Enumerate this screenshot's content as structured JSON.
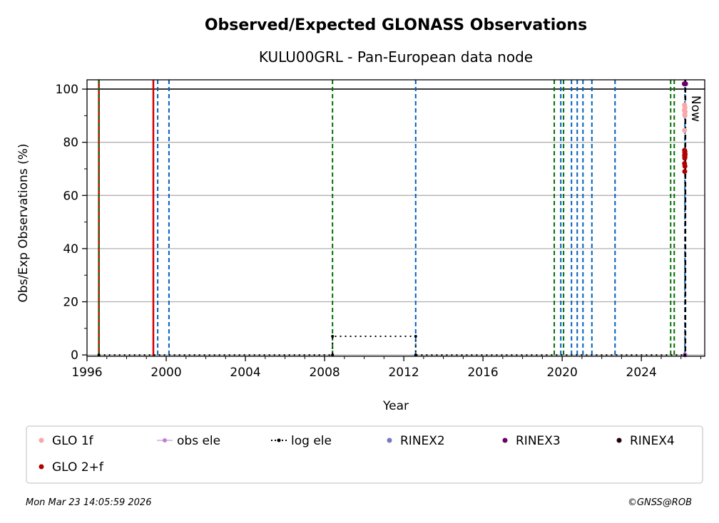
{
  "chart_data": {
    "type": "scatter",
    "title": "Observed/Expected GLONASS Observations",
    "subtitle": "KULU00GRL - Pan-European data node",
    "xlabel": "Year",
    "ylabel": "Obs/Exp Observations (%)",
    "xlim": [
      1996,
      2027.2
    ],
    "ylim": [
      -0.5,
      103.5
    ],
    "xticks": [
      1996,
      2000,
      2004,
      2008,
      2012,
      2016,
      2020,
      2024
    ],
    "yticks": [
      0,
      20,
      40,
      60,
      80,
      100
    ],
    "grid": "horizontal",
    "reference_line": 100,
    "now_label": "Now",
    "now_x": 2026.22,
    "vlines": [
      {
        "x": 1996.6,
        "color": "#d00000",
        "style": "solid"
      },
      {
        "x": 1996.6,
        "color": "#007000",
        "style": "dashed"
      },
      {
        "x": 1999.35,
        "color": "#d00000",
        "style": "solid"
      },
      {
        "x": 1999.57,
        "color": "#0060c0",
        "style": "dashed"
      },
      {
        "x": 2000.14,
        "color": "#0060c0",
        "style": "dashed"
      },
      {
        "x": 2008.4,
        "color": "#007000",
        "style": "dashed"
      },
      {
        "x": 2012.6,
        "color": "#0060c0",
        "style": "dashed"
      },
      {
        "x": 2019.6,
        "color": "#007000",
        "style": "dashed"
      },
      {
        "x": 2019.93,
        "color": "#0060c0",
        "style": "dashed"
      },
      {
        "x": 2020.07,
        "color": "#007000",
        "style": "dashed"
      },
      {
        "x": 2020.47,
        "color": "#0060c0",
        "style": "dashed"
      },
      {
        "x": 2020.76,
        "color": "#0060c0",
        "style": "dashed"
      },
      {
        "x": 2021.05,
        "color": "#0060c0",
        "style": "dashed"
      },
      {
        "x": 2021.5,
        "color": "#0060c0",
        "style": "dashed"
      },
      {
        "x": 2022.67,
        "color": "#0060c0",
        "style": "dashed"
      },
      {
        "x": 2025.48,
        "color": "#007000",
        "style": "dashed"
      },
      {
        "x": 2025.66,
        "color": "#007000",
        "style": "dashed"
      },
      {
        "x": 2026.2,
        "color": "#0060c0",
        "style": "dashed"
      }
    ],
    "series": [
      {
        "name": "GLO 1f",
        "color": "#f7a8a8",
        "marker": "dot",
        "points": [
          [
            2026.18,
            94
          ],
          [
            2026.2,
            93
          ],
          [
            2026.17,
            92
          ],
          [
            2026.21,
            91.5
          ],
          [
            2026.19,
            90.5
          ],
          [
            2026.2,
            90
          ],
          [
            2026.18,
            84.5
          ]
        ]
      },
      {
        "name": "obs ele",
        "color": "#c080d0",
        "marker": "line-dot",
        "points": [
          [
            2026.2,
            0
          ]
        ]
      },
      {
        "name": "log ele",
        "color": "#000000",
        "marker": "dotted-line",
        "points": [
          [
            1996.6,
            0
          ],
          [
            2008.4,
            0
          ],
          [
            2008.4,
            7
          ],
          [
            2012.6,
            7
          ],
          [
            2012.6,
            0
          ],
          [
            2026.2,
            0
          ]
        ]
      },
      {
        "name": "RINEX2",
        "color": "#7878c0",
        "marker": "dot",
        "points": []
      },
      {
        "name": "RINEX3",
        "color": "#6a0068",
        "marker": "dot",
        "points": [
          [
            2026.17,
            102
          ],
          [
            2026.23,
            102
          ]
        ]
      },
      {
        "name": "RINEX4",
        "color": "#200010",
        "marker": "dot",
        "points": []
      },
      {
        "name": "GLO 2+f",
        "color": "#b00000",
        "marker": "dot",
        "points": [
          [
            2026.18,
            77
          ],
          [
            2026.2,
            76.5
          ],
          [
            2026.19,
            76
          ],
          [
            2026.21,
            75.5
          ],
          [
            2026.18,
            75
          ],
          [
            2026.2,
            74.5
          ],
          [
            2026.19,
            74
          ],
          [
            2026.18,
            72
          ],
          [
            2026.2,
            71
          ],
          [
            2026.19,
            69
          ]
        ]
      }
    ]
  },
  "footer": {
    "timestamp": "Mon Mar 23 14:05:59 2026",
    "credit": "©GNSS@ROB"
  }
}
